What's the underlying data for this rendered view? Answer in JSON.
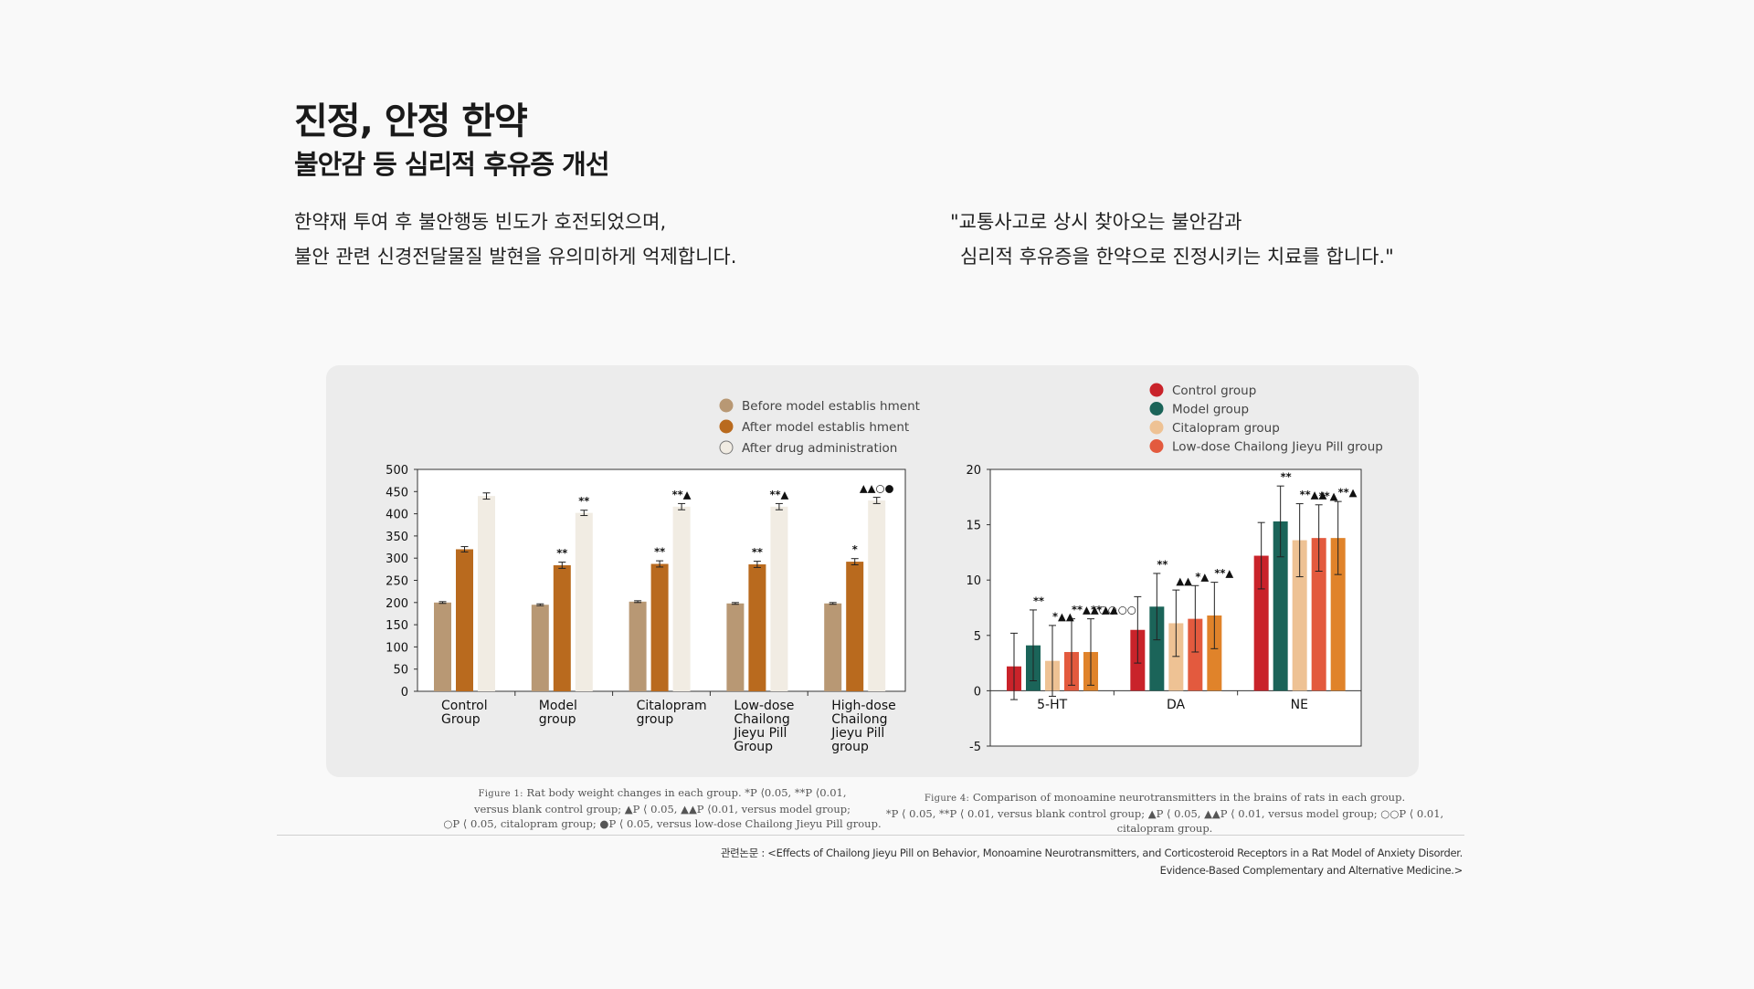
{
  "header": {
    "title": "진정, 안정 한약",
    "subtitle": "불안감 등 심리적 후유증 개선"
  },
  "description": {
    "left_line1": "한약재 투여 후 불안행동 빈도가 호전되었으며,",
    "left_line2": "불안 관련 신경전달물질 발현을 유의미하게 억제합니다.",
    "right_line1": "\"교통사고로 상시 찾아오는 불안감과",
    "right_line2": "심리적 후유증을 한약으로 진정시키는 치료를 합니다.\""
  },
  "chart_data": [
    {
      "type": "bar",
      "categories": [
        [
          "Control",
          "Group"
        ],
        [
          "Model",
          "group"
        ],
        [
          "Citalopram",
          "group"
        ],
        [
          "Low-dose",
          "Chailong",
          "Jieyu Pill",
          "Group"
        ],
        [
          "High-dose",
          "Chailong",
          "Jieyu Pill",
          "group"
        ]
      ],
      "series": [
        {
          "name": "Before model establis hment",
          "color": "#b89874",
          "values": [
            200,
            195,
            202,
            198,
            198
          ],
          "errors": [
            2,
            2,
            2,
            2,
            2
          ]
        },
        {
          "name": "After model establis hment",
          "color": "#b96a1e",
          "values": [
            320,
            284,
            287,
            286,
            292
          ],
          "errors": [
            6,
            7,
            7,
            7,
            7
          ]
        },
        {
          "name": "After drug administration",
          "color": "#f1ece3",
          "values": [
            440,
            402,
            416,
            416,
            430
          ],
          "errors": [
            7,
            6,
            7,
            7,
            7
          ]
        }
      ],
      "annotations": [
        {
          "category": 1,
          "series": 1,
          "text": "**"
        },
        {
          "category": 1,
          "series": 2,
          "text": "**"
        },
        {
          "category": 2,
          "series": 1,
          "text": "**"
        },
        {
          "category": 2,
          "series": 2,
          "text": "**▲"
        },
        {
          "category": 3,
          "series": 1,
          "text": "**"
        },
        {
          "category": 3,
          "series": 2,
          "text": "**▲"
        },
        {
          "category": 4,
          "series": 1,
          "text": "*"
        },
        {
          "category": 4,
          "series": 2,
          "text": "▲▲○●"
        }
      ],
      "ylim": [
        0,
        500
      ],
      "yticks": [
        0,
        50,
        100,
        150,
        200,
        250,
        300,
        350,
        400,
        450,
        500
      ],
      "legend_position": "top",
      "caption": {
        "figure_label": "Figure 1:",
        "line1": "Rat body weight changes in each group. *P ⟨0.05, **P ⟨0.01,",
        "line2": "versus blank control group; ▲P ⟨ 0.05, ▲▲P ⟨0.01, versus model group;",
        "line3": "○P ⟨ 0.05, citalopram group; ●P ⟨ 0.05, versus low-dose Chailong Jieyu Pill group."
      }
    },
    {
      "type": "bar",
      "categories": [
        "5-HT",
        "DA",
        "NE"
      ],
      "series": [
        {
          "name": "Control group",
          "color": "#c9232a",
          "values": [
            2.2,
            5.5,
            12.2
          ],
          "errors": [
            3.0,
            3.0,
            3.0
          ]
        },
        {
          "name": "Model group",
          "color": "#1b6459",
          "values": [
            4.1,
            7.6,
            15.3
          ],
          "errors": [
            3.2,
            3.0,
            3.2
          ]
        },
        {
          "name": "Citalopram group",
          "color": "#eec294",
          "values": [
            2.7,
            6.1,
            13.6
          ],
          "errors": [
            3.2,
            3.0,
            3.3
          ]
        },
        {
          "name": "Low-dose Chailong Jieyu Pill group",
          "color": "#e35a3e",
          "values": [
            3.5,
            6.5,
            13.8
          ],
          "errors": [
            3.0,
            3.0,
            3.0
          ]
        },
        {
          "name": "",
          "color": "#e0832a",
          "values": [
            3.5,
            6.8,
            13.8
          ],
          "errors": [
            3.0,
            3.0,
            3.3
          ]
        }
      ],
      "annotations": [
        {
          "category": 0,
          "series": 1,
          "text": "**"
        },
        {
          "category": 0,
          "series": 2,
          "text": "*▲▲"
        },
        {
          "category": 0,
          "series": 3,
          "text": "**▲▲○○"
        },
        {
          "category": 0,
          "series": 4,
          "text": "**▲▲○○"
        },
        {
          "category": 1,
          "series": 1,
          "text": "**"
        },
        {
          "category": 1,
          "series": 2,
          "text": "▲▲"
        },
        {
          "category": 1,
          "series": 3,
          "text": "*▲"
        },
        {
          "category": 1,
          "series": 4,
          "text": "**▲"
        },
        {
          "category": 2,
          "series": 1,
          "text": "**"
        },
        {
          "category": 2,
          "series": 2,
          "text": "**▲▲"
        },
        {
          "category": 2,
          "series": 3,
          "text": "**▲"
        },
        {
          "category": 2,
          "series": 4,
          "text": "**▲"
        }
      ],
      "ylim": [
        -5,
        20
      ],
      "yticks": [
        -5,
        0,
        5,
        10,
        15,
        20
      ],
      "legend_position": "top",
      "caption": {
        "figure_label": "Figure 4:",
        "line1": "Comparison of monoamine neurotransmitters in the brains of rats in each group.",
        "line2": "*P ⟨ 0.05, **P ⟨ 0.01, versus blank control group; ▲P ⟨ 0.05, ▲▲P ⟨ 0.01, versus model group; ○○P ⟨ 0.01, citalopram group."
      }
    }
  ],
  "reference": {
    "line1": "관련논문 : <Effects of Chailong Jieyu Pill on Behavior, Monoamine Neurotransmitters, and Corticosteroid Receptors in a Rat Model of Anxiety Disorder.",
    "line2": "Evidence-Based Complementary and Alternative Medicine.>"
  }
}
